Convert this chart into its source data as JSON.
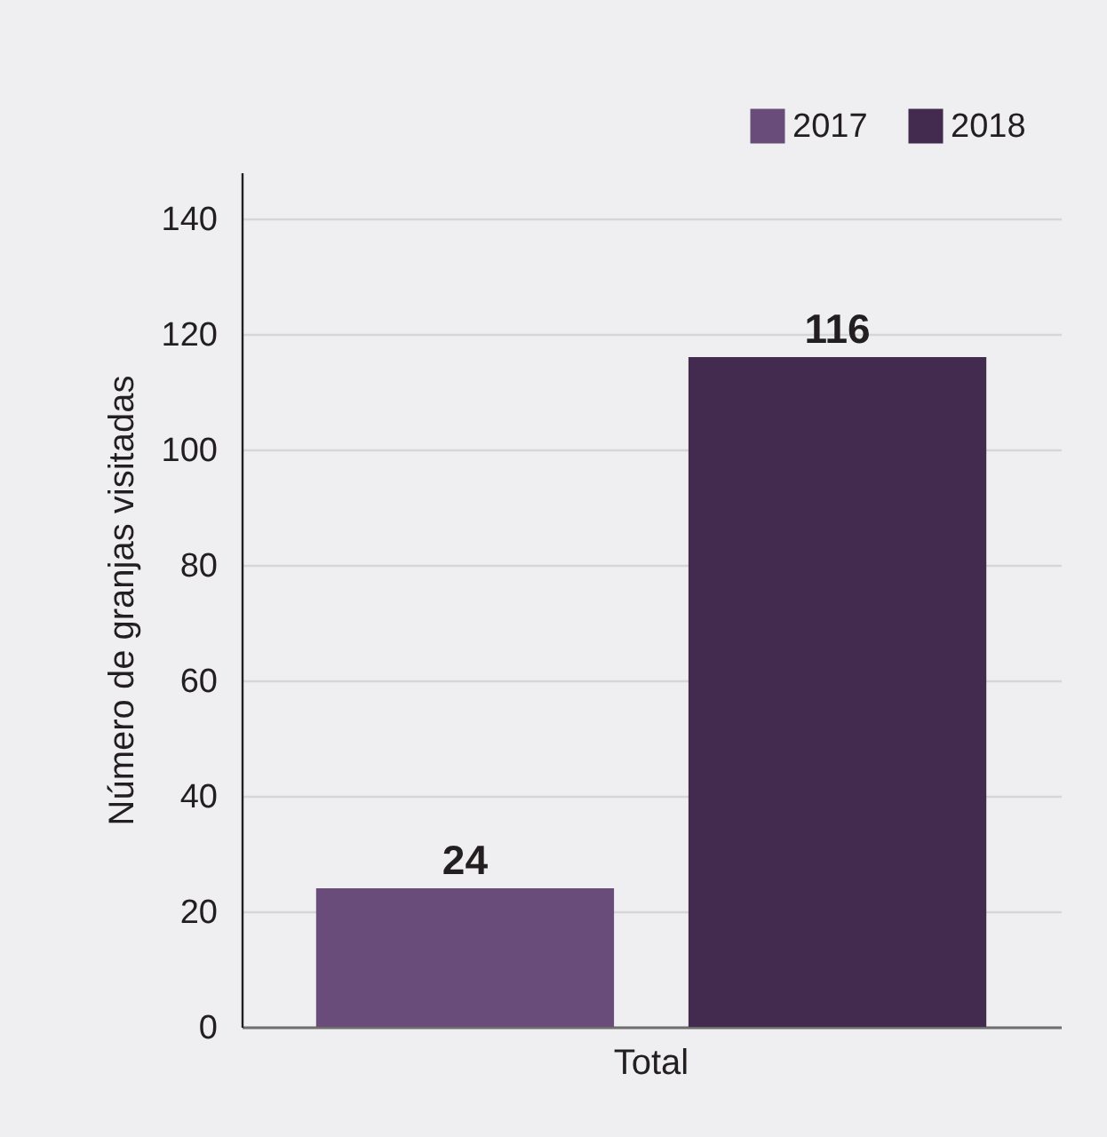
{
  "chart_data": {
    "type": "bar",
    "categories": [
      "Total"
    ],
    "series": [
      {
        "name": "2017",
        "color": "#6a4c7b",
        "values": [
          24
        ]
      },
      {
        "name": "2018",
        "color": "#432b4f",
        "values": [
          116
        ]
      }
    ],
    "ylabel": "Número de granjas visitadas",
    "ylim": [
      0,
      148
    ],
    "yticks": [
      0,
      20,
      40,
      60,
      80,
      100,
      120,
      140
    ],
    "grid": "y",
    "legend": "top right",
    "data_labels": true
  }
}
